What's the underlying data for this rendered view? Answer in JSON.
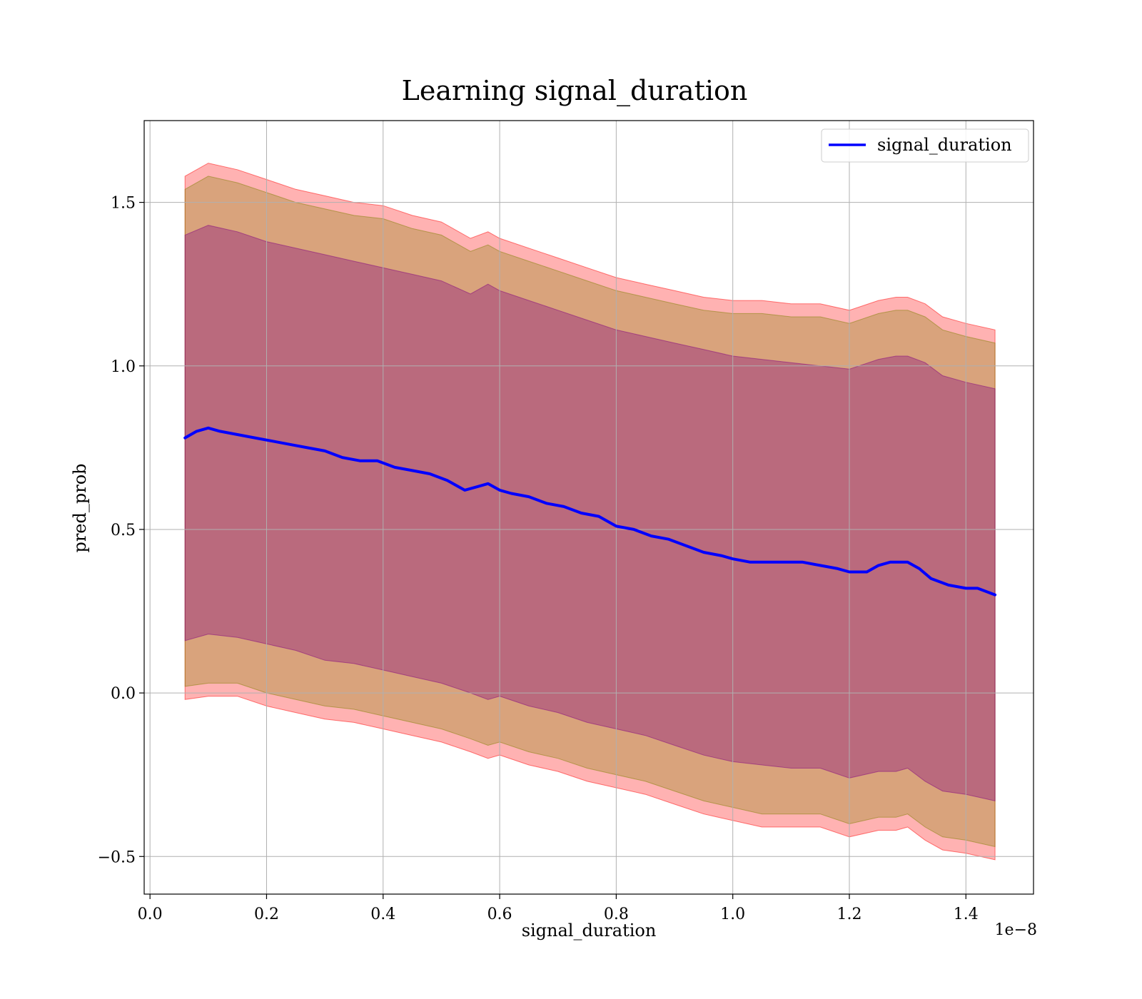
{
  "chart_data": {
    "type": "line",
    "title": "Learning signal_duration",
    "xlabel": "signal_duration",
    "ylabel": "pred_prob",
    "x_offset_text": "1e−8",
    "xlim": [
      -0.01,
      1.516
    ],
    "ylim": [
      -0.615,
      1.75
    ],
    "x_ticks": [
      0.0,
      0.2,
      0.4,
      0.6,
      0.8,
      1.0,
      1.2,
      1.4
    ],
    "x_tick_labels": [
      "0.0",
      "0.2",
      "0.4",
      "0.6",
      "0.8",
      "1.0",
      "1.2",
      "1.4"
    ],
    "y_ticks": [
      -0.5,
      0.0,
      0.5,
      1.0,
      1.5
    ],
    "y_tick_labels": [
      "−0.5",
      "0.0",
      "0.5",
      "1.0",
      "1.5"
    ],
    "grid": true,
    "legend_position": "top-right",
    "series": [
      {
        "name": "signal_duration",
        "color": "#0000ff",
        "x": [
          0.06,
          0.08,
          0.1,
          0.12,
          0.15,
          0.18,
          0.21,
          0.24,
          0.27,
          0.3,
          0.33,
          0.36,
          0.39,
          0.42,
          0.45,
          0.48,
          0.51,
          0.54,
          0.56,
          0.58,
          0.6,
          0.62,
          0.65,
          0.68,
          0.71,
          0.74,
          0.77,
          0.8,
          0.83,
          0.86,
          0.89,
          0.92,
          0.95,
          0.98,
          1.0,
          1.03,
          1.06,
          1.09,
          1.12,
          1.15,
          1.18,
          1.2,
          1.23,
          1.25,
          1.27,
          1.3,
          1.32,
          1.34,
          1.37,
          1.4,
          1.42,
          1.45
        ],
        "y": [
          0.78,
          0.8,
          0.81,
          0.8,
          0.79,
          0.78,
          0.77,
          0.76,
          0.75,
          0.74,
          0.72,
          0.71,
          0.71,
          0.69,
          0.68,
          0.67,
          0.65,
          0.62,
          0.63,
          0.64,
          0.62,
          0.61,
          0.6,
          0.58,
          0.57,
          0.55,
          0.54,
          0.51,
          0.5,
          0.48,
          0.47,
          0.45,
          0.43,
          0.42,
          0.41,
          0.4,
          0.4,
          0.4,
          0.4,
          0.39,
          0.38,
          0.37,
          0.37,
          0.39,
          0.4,
          0.4,
          0.38,
          0.35,
          0.33,
          0.32,
          0.32,
          0.3
        ]
      }
    ],
    "bands": [
      {
        "color": "#ff0000",
        "opacity": 0.3,
        "x": [
          0.06,
          0.1,
          0.15,
          0.2,
          0.25,
          0.3,
          0.35,
          0.4,
          0.45,
          0.5,
          0.55,
          0.58,
          0.6,
          0.65,
          0.7,
          0.75,
          0.8,
          0.85,
          0.9,
          0.95,
          1.0,
          1.05,
          1.1,
          1.15,
          1.2,
          1.25,
          1.28,
          1.3,
          1.33,
          1.36,
          1.4,
          1.45
        ],
        "upper": [
          1.58,
          1.62,
          1.6,
          1.57,
          1.54,
          1.52,
          1.5,
          1.49,
          1.46,
          1.44,
          1.39,
          1.41,
          1.39,
          1.36,
          1.33,
          1.3,
          1.27,
          1.25,
          1.23,
          1.21,
          1.2,
          1.2,
          1.19,
          1.19,
          1.17,
          1.2,
          1.21,
          1.21,
          1.19,
          1.15,
          1.13,
          1.11
        ],
        "lower": [
          -0.02,
          -0.01,
          -0.01,
          -0.04,
          -0.06,
          -0.08,
          -0.09,
          -0.11,
          -0.13,
          -0.15,
          -0.18,
          -0.2,
          -0.19,
          -0.22,
          -0.24,
          -0.27,
          -0.29,
          -0.31,
          -0.34,
          -0.37,
          -0.39,
          -0.41,
          -0.41,
          -0.41,
          -0.44,
          -0.42,
          -0.42,
          -0.41,
          -0.45,
          -0.48,
          -0.49,
          -0.51
        ]
      },
      {
        "color": "#808000",
        "opacity": 0.3,
        "x": [
          0.06,
          0.1,
          0.15,
          0.2,
          0.25,
          0.3,
          0.35,
          0.4,
          0.45,
          0.5,
          0.55,
          0.58,
          0.6,
          0.65,
          0.7,
          0.75,
          0.8,
          0.85,
          0.9,
          0.95,
          1.0,
          1.05,
          1.1,
          1.15,
          1.2,
          1.25,
          1.28,
          1.3,
          1.33,
          1.36,
          1.4,
          1.45
        ],
        "upper": [
          1.54,
          1.58,
          1.56,
          1.53,
          1.5,
          1.48,
          1.46,
          1.45,
          1.42,
          1.4,
          1.35,
          1.37,
          1.35,
          1.32,
          1.29,
          1.26,
          1.23,
          1.21,
          1.19,
          1.17,
          1.16,
          1.16,
          1.15,
          1.15,
          1.13,
          1.16,
          1.17,
          1.17,
          1.15,
          1.11,
          1.09,
          1.07
        ],
        "lower": [
          0.02,
          0.03,
          0.03,
          0.0,
          -0.02,
          -0.04,
          -0.05,
          -0.07,
          -0.09,
          -0.11,
          -0.14,
          -0.16,
          -0.15,
          -0.18,
          -0.2,
          -0.23,
          -0.25,
          -0.27,
          -0.3,
          -0.33,
          -0.35,
          -0.37,
          -0.37,
          -0.37,
          -0.4,
          -0.38,
          -0.38,
          -0.37,
          -0.41,
          -0.44,
          -0.45,
          -0.47
        ]
      },
      {
        "color": "#800080",
        "opacity": 0.35,
        "x": [
          0.06,
          0.1,
          0.15,
          0.2,
          0.25,
          0.3,
          0.35,
          0.4,
          0.45,
          0.5,
          0.55,
          0.58,
          0.6,
          0.65,
          0.7,
          0.75,
          0.8,
          0.85,
          0.9,
          0.95,
          1.0,
          1.05,
          1.1,
          1.15,
          1.2,
          1.25,
          1.28,
          1.3,
          1.33,
          1.36,
          1.4,
          1.45
        ],
        "upper": [
          1.4,
          1.43,
          1.41,
          1.38,
          1.36,
          1.34,
          1.32,
          1.3,
          1.28,
          1.26,
          1.22,
          1.25,
          1.23,
          1.2,
          1.17,
          1.14,
          1.11,
          1.09,
          1.07,
          1.05,
          1.03,
          1.02,
          1.01,
          1.0,
          0.99,
          1.02,
          1.03,
          1.03,
          1.01,
          0.97,
          0.95,
          0.93
        ],
        "lower": [
          0.16,
          0.18,
          0.17,
          0.15,
          0.13,
          0.1,
          0.09,
          0.07,
          0.05,
          0.03,
          0.0,
          -0.02,
          -0.01,
          -0.04,
          -0.06,
          -0.09,
          -0.11,
          -0.13,
          -0.16,
          -0.19,
          -0.21,
          -0.22,
          -0.23,
          -0.23,
          -0.26,
          -0.24,
          -0.24,
          -0.23,
          -0.27,
          -0.3,
          -0.31,
          -0.33
        ]
      }
    ]
  }
}
